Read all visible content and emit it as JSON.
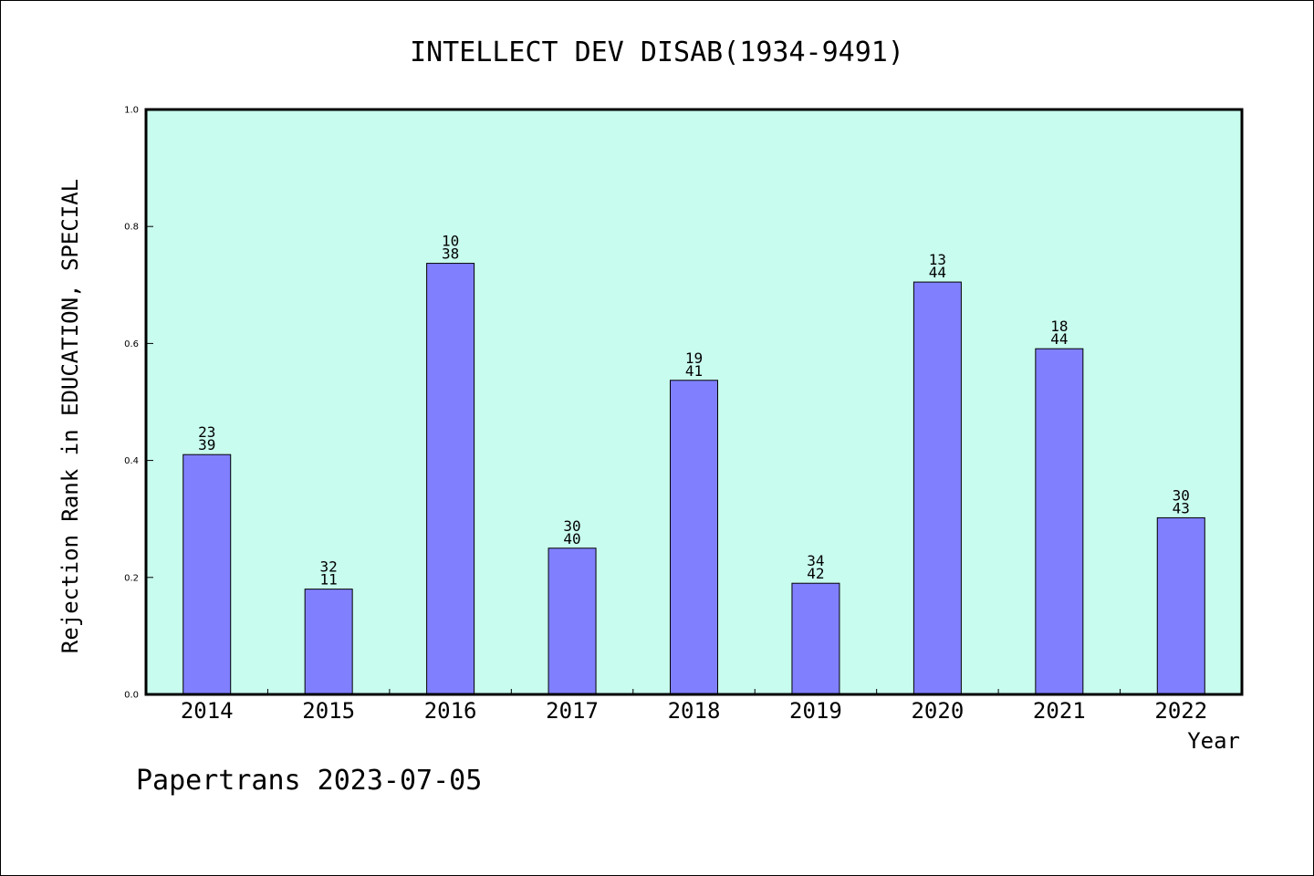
{
  "chart_data": {
    "type": "bar",
    "title": "INTELLECT DEV DISAB(1934-9491)",
    "xlabel": "Year",
    "ylabel": "Rejection Rank in EDUCATION, SPECIAL",
    "ylim": [
      0,
      1.0
    ],
    "yticks": [
      "0.0",
      "0.2",
      "0.4",
      "0.6",
      "0.8",
      "1.0"
    ],
    "categories": [
      "2014",
      "2015",
      "2016",
      "2017",
      "2018",
      "2019",
      "2020",
      "2021",
      "2022"
    ],
    "values": [
      0.41,
      0.18,
      0.737,
      0.25,
      0.537,
      0.19,
      0.705,
      0.591,
      0.302
    ],
    "labels_top": [
      "23",
      "32",
      "10",
      "30",
      "19",
      "34",
      "13",
      "18",
      "30"
    ],
    "labels_bottom": [
      "39",
      "11",
      "38",
      "40",
      "41",
      "42",
      "44",
      "44",
      "43"
    ],
    "grid": false,
    "colors": {
      "plot_bg": "#c8fcee",
      "bar": "#8080ff",
      "bar_stroke": "#000000"
    }
  },
  "footer": "Papertrans 2023-07-05"
}
